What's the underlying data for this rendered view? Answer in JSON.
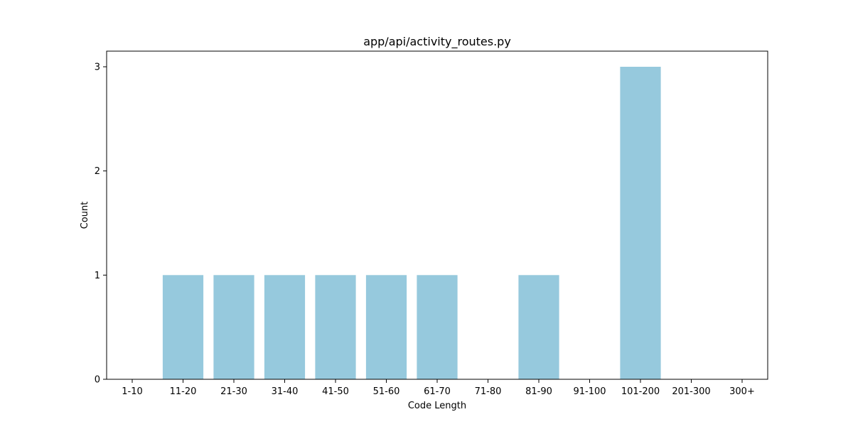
{
  "chart_data": {
    "type": "bar",
    "title": "app/api/activity_routes.py",
    "xlabel": "Code Length",
    "ylabel": "Count",
    "categories": [
      "1-10",
      "11-20",
      "21-30",
      "31-40",
      "41-50",
      "51-60",
      "61-70",
      "71-80",
      "81-90",
      "91-100",
      "101-200",
      "201-300",
      "300+"
    ],
    "values": [
      0,
      1,
      1,
      1,
      1,
      1,
      1,
      0,
      1,
      0,
      3,
      0,
      0
    ],
    "ylim": [
      0,
      3.15
    ],
    "yticks": [
      0,
      1,
      2,
      3
    ],
    "grid": false,
    "legend": "none",
    "bar_color": "#96c9dd"
  }
}
